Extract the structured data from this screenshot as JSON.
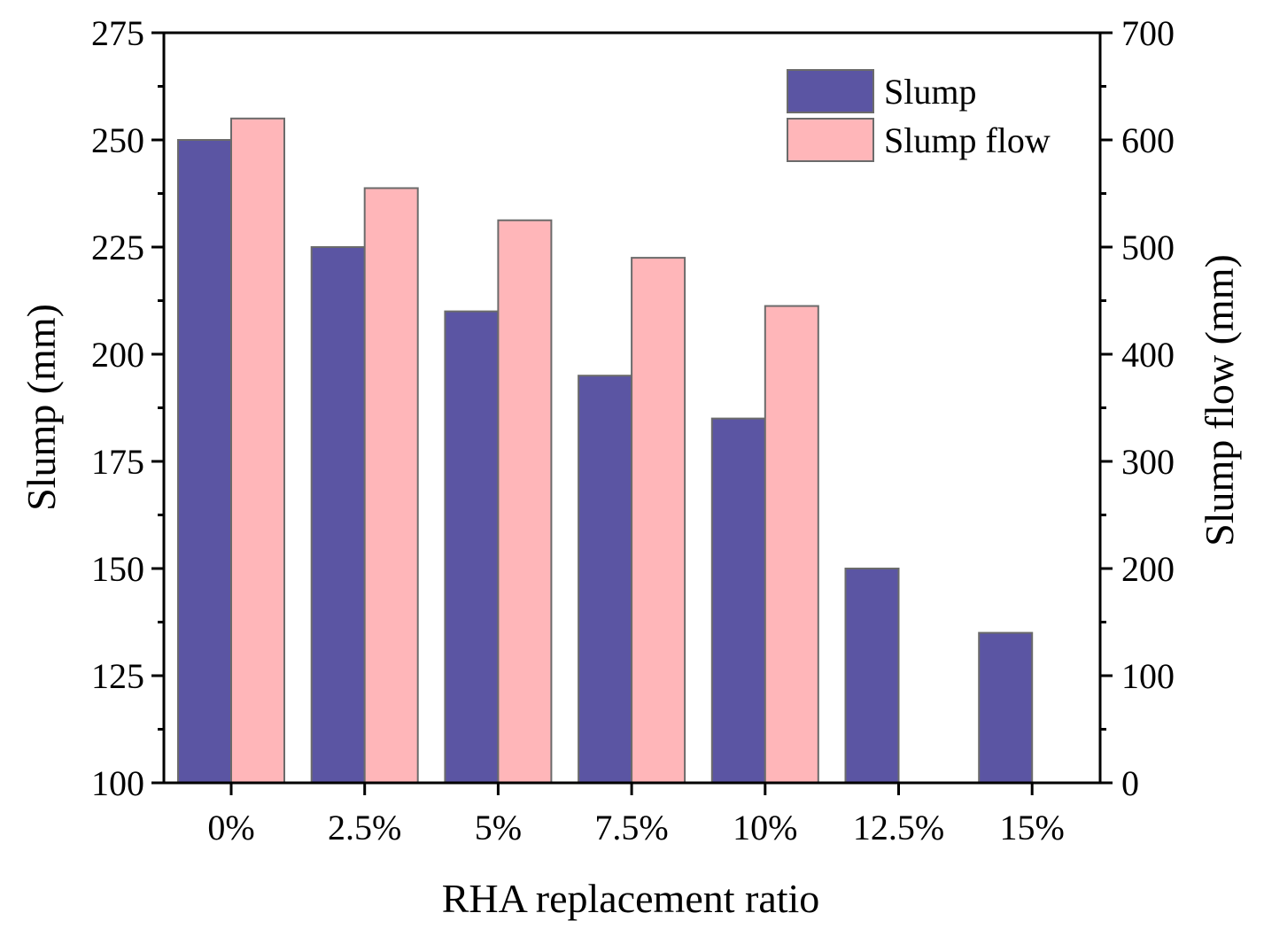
{
  "chart_data": {
    "type": "bar",
    "xlabel": "RHA replacement ratio",
    "ylabel": "Slump (mm)",
    "y2label": "Slump flow (mm)",
    "categories": [
      "0%",
      "2.5%",
      "5%",
      "7.5%",
      "10%",
      "12.5%",
      "15%"
    ],
    "ylim": [
      100,
      275
    ],
    "y2lim": [
      0,
      700
    ],
    "yticks": [
      100,
      125,
      150,
      175,
      200,
      225,
      250,
      275
    ],
    "y2ticks": [
      0,
      100,
      200,
      300,
      400,
      500,
      600,
      700
    ],
    "legend_position": "top-right",
    "grid": false,
    "series": [
      {
        "name": "Slump",
        "axis": "left",
        "color": "#5b55a3",
        "values": [
          250,
          225,
          210,
          195,
          185,
          150,
          135
        ]
      },
      {
        "name": "Slump flow",
        "axis": "right",
        "color": "#ffb6b9",
        "values": [
          620,
          555,
          525,
          490,
          445,
          null,
          null
        ]
      }
    ]
  }
}
